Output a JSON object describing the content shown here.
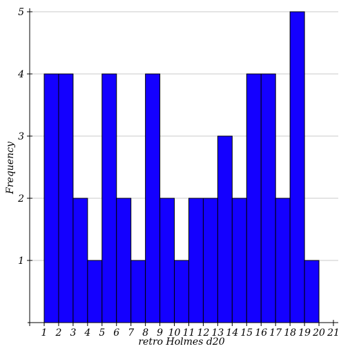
{
  "chart_data": {
    "type": "bar",
    "subtype": "histogram",
    "xlabel": "retro Holmes d20",
    "ylabel": "Frequency",
    "x_ticks": [
      "1",
      "2",
      "3",
      "4",
      "5",
      "6",
      "7",
      "8",
      "9",
      "10",
      "11",
      "12",
      "13",
      "14",
      "15",
      "16",
      "17",
      "18",
      "19",
      "20",
      "21"
    ],
    "y_ticks": [
      "1",
      "2",
      "3",
      "4",
      "5"
    ],
    "xlim": [
      1,
      21
    ],
    "ylim": [
      0,
      5
    ],
    "bins": [
      {
        "start": 1,
        "end": 2,
        "count": 4
      },
      {
        "start": 2,
        "end": 3,
        "count": 4
      },
      {
        "start": 3,
        "end": 4,
        "count": 2
      },
      {
        "start": 4,
        "end": 5,
        "count": 1
      },
      {
        "start": 5,
        "end": 6,
        "count": 4
      },
      {
        "start": 6,
        "end": 7,
        "count": 2
      },
      {
        "start": 7,
        "end": 8,
        "count": 1
      },
      {
        "start": 8,
        "end": 9,
        "count": 4
      },
      {
        "start": 9,
        "end": 10,
        "count": 2
      },
      {
        "start": 10,
        "end": 11,
        "count": 1
      },
      {
        "start": 11,
        "end": 12,
        "count": 2
      },
      {
        "start": 12,
        "end": 13,
        "count": 2
      },
      {
        "start": 13,
        "end": 14,
        "count": 3
      },
      {
        "start": 14,
        "end": 15,
        "count": 2
      },
      {
        "start": 15,
        "end": 16,
        "count": 4
      },
      {
        "start": 16,
        "end": 17,
        "count": 4
      },
      {
        "start": 17,
        "end": 18,
        "count": 2
      },
      {
        "start": 18,
        "end": 19,
        "count": 5
      },
      {
        "start": 19,
        "end": 20,
        "count": 1
      }
    ],
    "grid": "horizontal",
    "legend": "none",
    "colors": {
      "bar_fill": "#1400ff",
      "bar_stroke": "#000000",
      "grid": "#c8c8c8",
      "axis": "#000000"
    }
  }
}
